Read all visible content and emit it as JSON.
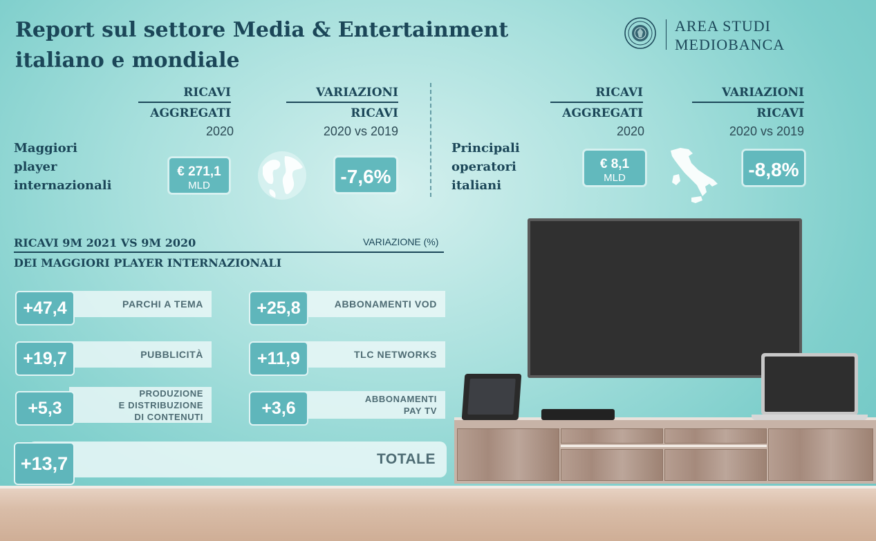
{
  "header": {
    "title_line1": "Report sul settore Media & Entertainment",
    "title_line2": "italiano e mondiale",
    "logo_line1": "AREA STUDI",
    "logo_line2": "MEDIOBANCA"
  },
  "international": {
    "label_lines": [
      "Maggiori",
      "player",
      "internazionali"
    ],
    "revenue_head1": "RICAVI",
    "revenue_head2": "AGGREGATI",
    "revenue_year": "2020",
    "revenue_value": "€ 271,1",
    "revenue_unit": "MLD",
    "change_head1": "VARIAZIONI",
    "change_head2": "RICAVI",
    "change_period": "2020 vs 2019",
    "change_value": "-7,6%",
    "icon": "globe-icon"
  },
  "italian": {
    "label_lines": [
      "Principali",
      "operatori",
      "italiani"
    ],
    "revenue_head1": "RICAVI",
    "revenue_head2": "AGGREGATI",
    "revenue_year": "2020",
    "revenue_value": "€ 8,1",
    "revenue_unit": "MLD",
    "change_head1": "VARIAZIONI",
    "change_head2": "RICAVI",
    "change_period": "2020 vs 2019",
    "change_value": "-8,8%",
    "icon": "italy-map-icon"
  },
  "section": {
    "title_line1": "RICAVI 9M 2021 VS 9M 2020",
    "title_line2": "DEI MAGGIORI PLAYER INTERNAZIONALI",
    "variation_label": "VARIAZIONE (%)"
  },
  "metrics": [
    {
      "value": "+47,4",
      "label": "PARCHI A TEMA"
    },
    {
      "value": "+25,8",
      "label": "ABBONAMENTI VOD"
    },
    {
      "value": "+19,7",
      "label": "PUBBLICITÀ"
    },
    {
      "value": "+11,9",
      "label": "TLC NETWORKS"
    },
    {
      "value": "+5,3",
      "label": "PRODUZIONE\nE DISTRIBUZIONE\nDI CONTENUTI"
    },
    {
      "value": "+3,6",
      "label": "ABBONAMENTI\nPAY TV"
    }
  ],
  "total": {
    "value": "+13,7",
    "label": "TOTALE"
  },
  "colors": {
    "accent": "#62b9bd",
    "dark": "#1b4658",
    "label_text": "#4d6b73"
  }
}
